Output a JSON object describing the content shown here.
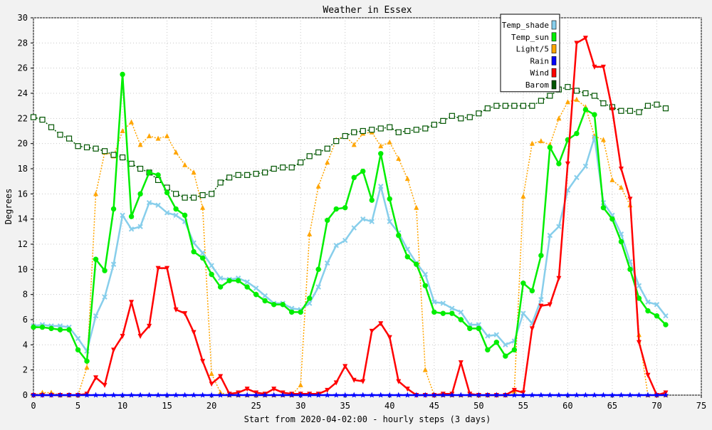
{
  "chart_data": {
    "type": "line",
    "title": "Weather in Essex",
    "xlabel": "Start from 2020-04-02:00 - hourly steps (3 days)",
    "ylabel": "Degrees",
    "xlim": [
      0,
      75
    ],
    "ylim": [
      0,
      30
    ],
    "x_ticks": [
      0,
      5,
      10,
      15,
      20,
      25,
      30,
      35,
      40,
      45,
      50,
      55,
      60,
      65,
      70,
      75
    ],
    "y_ticks": [
      0,
      2,
      4,
      6,
      8,
      10,
      12,
      14,
      16,
      18,
      20,
      22,
      24,
      26,
      28,
      30
    ],
    "grid": true,
    "legend_position": "top-right",
    "x": [
      0,
      1,
      2,
      3,
      4,
      5,
      6,
      7,
      8,
      9,
      10,
      11,
      12,
      13,
      14,
      15,
      16,
      17,
      18,
      19,
      20,
      21,
      22,
      23,
      24,
      25,
      26,
      27,
      28,
      29,
      30,
      31,
      32,
      33,
      34,
      35,
      36,
      37,
      38,
      39,
      40,
      41,
      42,
      43,
      44,
      45,
      46,
      47,
      48,
      49,
      50,
      51,
      52,
      53,
      54,
      55,
      56,
      57,
      58,
      59,
      60,
      61,
      62,
      63,
      64,
      65,
      66,
      67,
      68,
      69,
      70,
      71
    ],
    "series": [
      {
        "name": "Temp_shade",
        "color": "#87ceeb",
        "marker": "x",
        "line": "solid",
        "values": [
          5.5,
          5.6,
          5.5,
          5.5,
          5.4,
          4.5,
          3.5,
          6.3,
          7.8,
          10.4,
          14.3,
          13.2,
          13.4,
          15.3,
          15.1,
          14.5,
          14.3,
          13.8,
          12.1,
          11.3,
          10.3,
          9.3,
          9.2,
          9.3,
          9.0,
          8.5,
          7.9,
          7.3,
          7.3,
          6.9,
          6.8,
          7.3,
          8.6,
          10.5,
          11.9,
          12.3,
          13.3,
          14.0,
          13.8,
          16.6,
          13.8,
          12.9,
          11.6,
          10.5,
          9.6,
          7.4,
          7.3,
          6.9,
          6.6,
          5.6,
          5.6,
          4.7,
          4.8,
          4.0,
          4.3,
          6.5,
          5.7,
          7.6,
          12.7,
          13.4,
          16.3,
          17.3,
          18.2,
          20.5,
          15.3,
          14.3,
          12.8,
          10.6,
          8.7,
          7.4,
          7.2,
          6.3
        ]
      },
      {
        "name": "Temp_sun",
        "color": "#00ee00",
        "marker": "circle",
        "line": "solid",
        "values": [
          5.4,
          5.4,
          5.3,
          5.2,
          5.2,
          3.6,
          2.7,
          10.8,
          9.9,
          14.8,
          25.5,
          14.2,
          16.0,
          17.7,
          17.5,
          16.1,
          14.8,
          14.3,
          11.4,
          10.9,
          9.6,
          8.6,
          9.1,
          9.1,
          8.6,
          8.0,
          7.5,
          7.2,
          7.2,
          6.6,
          6.6,
          7.7,
          10.0,
          13.9,
          14.8,
          14.9,
          17.3,
          17.8,
          15.5,
          19.2,
          15.6,
          12.7,
          11.0,
          10.4,
          8.7,
          6.6,
          6.5,
          6.5,
          6.0,
          5.3,
          5.3,
          3.6,
          4.2,
          3.1,
          3.6,
          8.9,
          8.3,
          11.1,
          19.7,
          18.4,
          20.3,
          20.8,
          22.7,
          22.3,
          14.9,
          14.0,
          12.2,
          10.0,
          7.7,
          6.7,
          6.3,
          5.6
        ]
      },
      {
        "name": "Light/5",
        "color": "#ffa500",
        "marker": "triangle",
        "line": "dotted",
        "values": [
          0.0,
          0.2,
          0.2,
          0.0,
          0.0,
          0.0,
          2.2,
          16.0,
          19.3,
          19.0,
          21.0,
          21.7,
          19.9,
          20.6,
          20.4,
          20.6,
          19.3,
          18.3,
          17.7,
          14.9,
          1.7,
          0.2,
          0.0,
          0.0,
          0.0,
          0.0,
          0.0,
          0.0,
          0.0,
          0.0,
          0.8,
          12.8,
          16.6,
          18.5,
          20.3,
          20.6,
          19.9,
          20.8,
          20.9,
          19.8,
          20.1,
          18.8,
          17.2,
          14.9,
          2.0,
          0.0,
          0.0,
          0.0,
          0.0,
          0.0,
          0.0,
          0.0,
          0.0,
          0.0,
          0.3,
          15.8,
          20.0,
          20.2,
          19.9,
          22.0,
          23.3,
          23.5,
          22.9,
          20.6,
          20.3,
          17.1,
          16.5,
          15.1,
          4.8,
          0.0,
          0.0,
          0.0
        ]
      },
      {
        "name": "Rain",
        "color": "#0000ff",
        "marker": "star",
        "line": "solid",
        "values": [
          0,
          0,
          0,
          0,
          0,
          0,
          0,
          0,
          0,
          0,
          0,
          0,
          0,
          0,
          0,
          0,
          0,
          0,
          0,
          0,
          0,
          0,
          0,
          0,
          0,
          0,
          0,
          0,
          0,
          0,
          0,
          0,
          0,
          0,
          0,
          0,
          0,
          0,
          0,
          0,
          0,
          0,
          0,
          0,
          0,
          0,
          0,
          0,
          0,
          0,
          0,
          0,
          0,
          0,
          0,
          0,
          0,
          0,
          0,
          0,
          0,
          0,
          0,
          0,
          0,
          0,
          0,
          0,
          0,
          0,
          0,
          0
        ]
      },
      {
        "name": "Wind",
        "color": "#ff0000",
        "marker": "triangle-down",
        "line": "solid",
        "values": [
          0,
          0,
          0,
          0,
          0,
          0,
          0.1,
          1.4,
          0.8,
          3.6,
          4.7,
          7.4,
          4.7,
          5.5,
          10.1,
          10.1,
          6.8,
          6.5,
          5.0,
          2.7,
          0.9,
          1.5,
          0.1,
          0.2,
          0.5,
          0.2,
          0.1,
          0.5,
          0.2,
          0.1,
          0.1,
          0.1,
          0.1,
          0.4,
          1.0,
          2.3,
          1.2,
          1.1,
          5.1,
          5.7,
          4.6,
          1.1,
          0.5,
          0,
          0,
          0,
          0.1,
          0.1,
          2.6,
          0.1,
          0,
          0,
          0,
          0,
          0.4,
          0.2,
          5.3,
          7.1,
          7.2,
          9.3,
          18.4,
          28.0,
          28.4,
          26.1,
          26.1,
          22.7,
          18.0,
          15.6,
          4.2,
          1.6,
          0,
          0.2
        ]
      },
      {
        "name": "Barom",
        "color": "#005500",
        "marker": "square",
        "line": "dotted",
        "values": [
          22.1,
          21.9,
          21.3,
          20.7,
          20.4,
          19.8,
          19.7,
          19.6,
          19.4,
          19.1,
          18.9,
          18.4,
          18.0,
          17.7,
          17.1,
          16.5,
          16.0,
          15.7,
          15.7,
          15.9,
          16.0,
          16.9,
          17.3,
          17.5,
          17.5,
          17.6,
          17.7,
          18.0,
          18.1,
          18.1,
          18.5,
          19.0,
          19.3,
          19.6,
          20.2,
          20.6,
          20.9,
          21.0,
          21.1,
          21.2,
          21.3,
          20.9,
          21.0,
          21.1,
          21.2,
          21.5,
          21.8,
          22.2,
          22.0,
          22.1,
          22.4,
          22.8,
          23.0,
          23.0,
          23.0,
          23.0,
          23.0,
          23.4,
          23.8,
          24.3,
          24.5,
          24.2,
          24.0,
          23.8,
          23.2,
          22.9,
          22.6,
          22.6,
          22.5,
          23.0,
          23.1,
          22.8
        ]
      }
    ]
  }
}
